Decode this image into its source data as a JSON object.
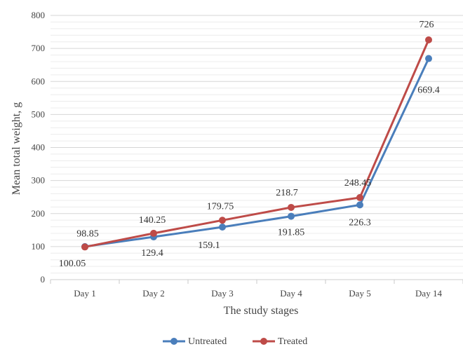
{
  "chart_data": {
    "type": "line",
    "title": "",
    "xlabel": "The study stages",
    "ylabel": "Mean total weight, g",
    "categories": [
      "Day 1",
      "Day 2",
      "Day 3",
      "Day 4",
      "Day 5",
      "Day 14"
    ],
    "ylim": [
      0,
      800
    ],
    "yticks": [
      "0",
      "100",
      "200",
      "300",
      "400",
      "500",
      "600",
      "700",
      "800"
    ],
    "grid": true,
    "legend_position": "bottom",
    "series": [
      {
        "name": "Untreated",
        "color": "#4a7ebb",
        "values": [
          100.05,
          129.4,
          159.1,
          191.85,
          226.3,
          669.4
        ],
        "labels": [
          "100.05",
          "129.4",
          "159.1",
          "191.85",
          "226.3",
          "669.4"
        ]
      },
      {
        "name": "Treated",
        "color": "#be4b48",
        "values": [
          98.85,
          140.25,
          179.75,
          218.7,
          248.45,
          726
        ],
        "labels": [
          "98.85",
          "140.25",
          "179.75",
          "218.7",
          "248.45",
          "726"
        ]
      }
    ]
  }
}
